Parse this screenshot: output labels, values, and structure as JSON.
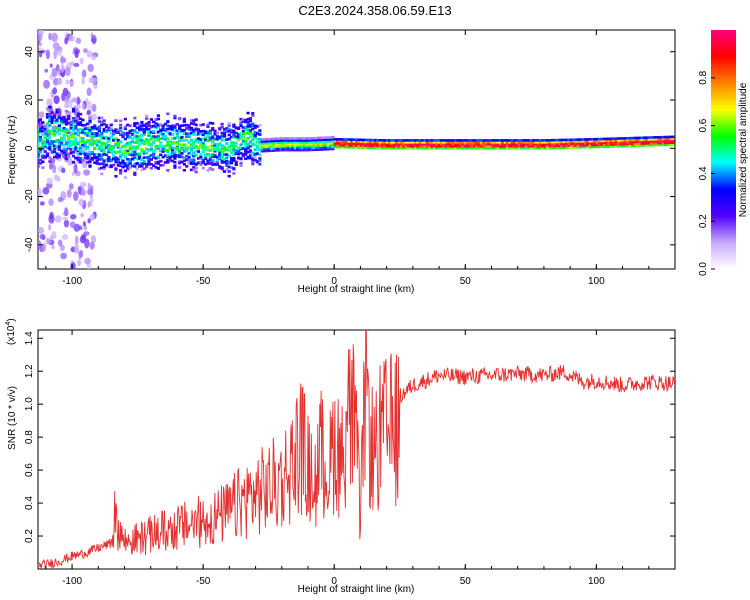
{
  "title": "C2E3.2024.358.06.59.E13",
  "chart_data": [
    {
      "type": "heatmap",
      "xlabel": "Height of straight line (km)",
      "ylabel": "Frequency (Hz)",
      "xlim": [
        -113,
        130
      ],
      "ylim": [
        -50,
        49
      ],
      "x_ticks": [
        "-100",
        "-50",
        "0",
        "50",
        "100"
      ],
      "y_ticks": [
        "-40",
        "-20",
        "0",
        "20",
        "40"
      ],
      "colorbar": {
        "label": "Normalized spectral amplitude",
        "range": [
          0.0,
          1.0
        ],
        "ticks": [
          "0.0",
          "0.2",
          "0.4",
          "0.6",
          "0.8"
        ],
        "colors": [
          "#ffffff",
          "#c8a8ff",
          "#5000ff",
          "#0000ff",
          "#00ffff",
          "#00ff00",
          "#ffff00",
          "#ff8000",
          "#ff0000",
          "#ff0080"
        ]
      },
      "band_center": [
        {
          "x": -110,
          "y": 7
        },
        {
          "x": -100,
          "y": 5
        },
        {
          "x": -90,
          "y": 2
        },
        {
          "x": -80,
          "y": 0
        },
        {
          "x": -70,
          "y": 2
        },
        {
          "x": -60,
          "y": 3
        },
        {
          "x": -50,
          "y": 1
        },
        {
          "x": -40,
          "y": 0
        },
        {
          "x": -33,
          "y": 5
        },
        {
          "x": -28,
          "y": 1
        },
        {
          "x": -20,
          "y": 1.5
        },
        {
          "x": -10,
          "y": 1.5
        },
        {
          "x": 0,
          "y": 2
        },
        {
          "x": 20,
          "y": 1.5
        },
        {
          "x": 50,
          "y": 1.5
        },
        {
          "x": 80,
          "y": 1.5
        },
        {
          "x": 100,
          "y": 2
        },
        {
          "x": 130,
          "y": 3
        }
      ]
    },
    {
      "type": "line",
      "xlabel": "Height of straight line (km)",
      "ylabel": "SNR (10 * v/v)",
      "yexponent": "(x10",
      "yexponent_power": "4",
      "yexponent_close": ")",
      "xlim": [
        -113,
        130
      ],
      "ylim": [
        0,
        1.45
      ],
      "x_ticks": [
        "-100",
        "-50",
        "0",
        "50",
        "100"
      ],
      "y_ticks": [
        "0.2",
        "0.4",
        "0.6",
        "0.8",
        "1.0",
        "1.2",
        "1.4"
      ],
      "line_color": "#e53030",
      "series": [
        {
          "x": [
            -113,
            -110,
            -105,
            -100,
            -95,
            -90,
            -85,
            -84,
            -80,
            -75,
            -70,
            -65,
            -60,
            -55,
            -50,
            -45,
            -40,
            -35,
            -30,
            -25,
            -20,
            -15,
            -13,
            -10,
            -8,
            -5,
            -2,
            0,
            3,
            5,
            8,
            10,
            12,
            14,
            16,
            18,
            20,
            25,
            30,
            40,
            50,
            60,
            70,
            80,
            88,
            95,
            100,
            110,
            115,
            120,
            130
          ],
          "y": [
            0.02,
            0.03,
            0.05,
            0.08,
            0.1,
            0.13,
            0.16,
            0.38,
            0.2,
            0.22,
            0.25,
            0.28,
            0.3,
            0.33,
            0.35,
            0.38,
            0.42,
            0.5,
            0.55,
            0.6,
            0.65,
            0.8,
            0.95,
            0.75,
            0.6,
            0.85,
            0.7,
            0.95,
            0.8,
            1.15,
            1.05,
            0.35,
            1.45,
            0.9,
            0.85,
            1.0,
            1.0,
            1.05,
            1.12,
            1.18,
            1.17,
            1.18,
            1.19,
            1.18,
            1.2,
            1.14,
            1.15,
            1.12,
            1.13,
            1.14,
            1.13
          ]
        }
      ]
    }
  ]
}
